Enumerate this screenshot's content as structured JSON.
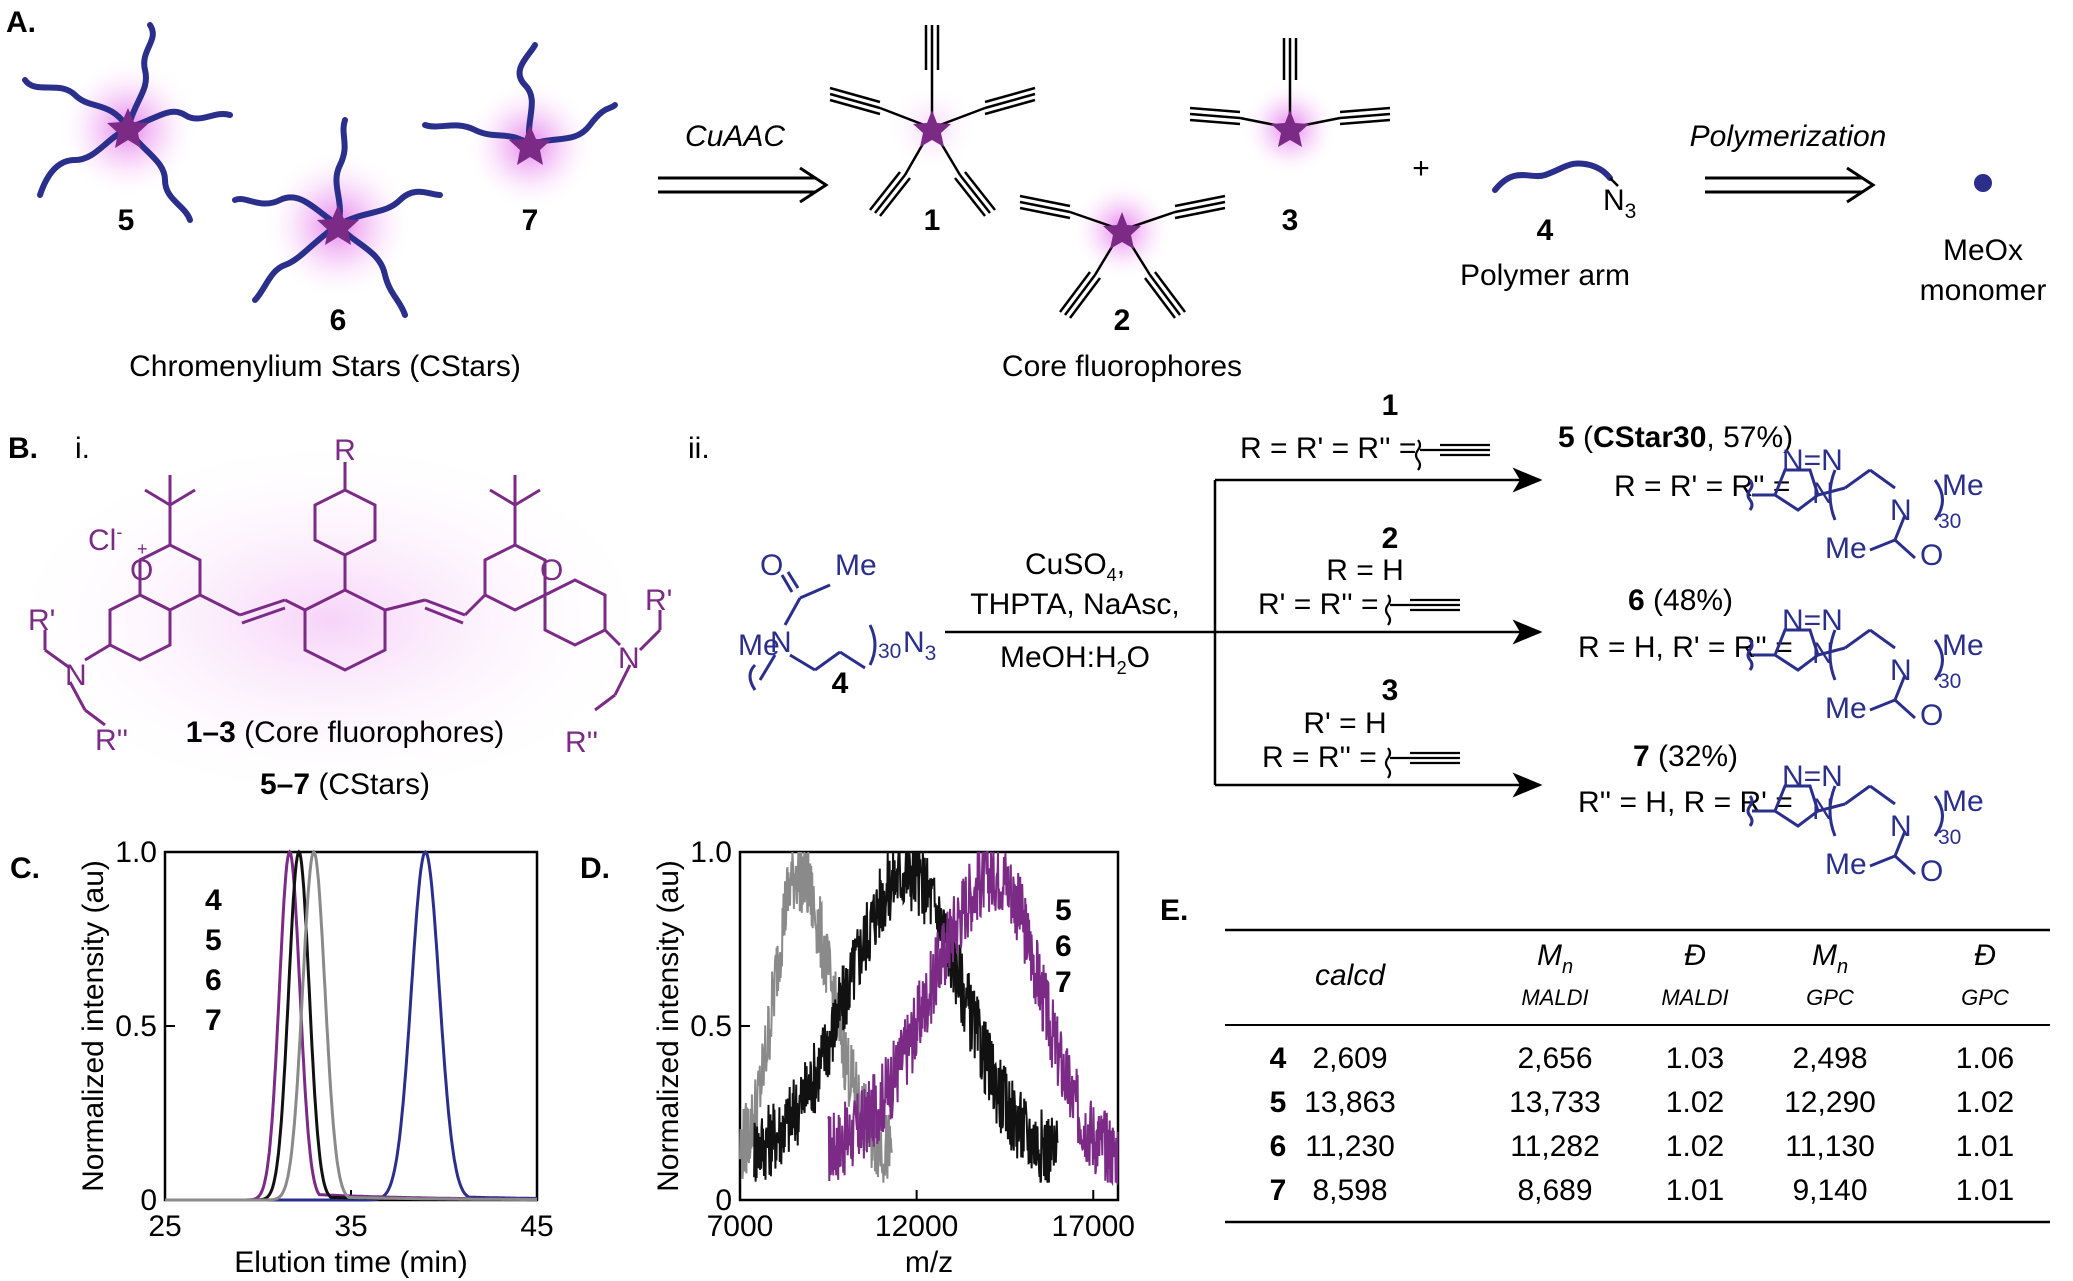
{
  "colors": {
    "purple": "#7b2a86",
    "blue": "#2b2f8c",
    "gray": "#8a8a8a",
    "black": "#111111",
    "glow": "#e89af0"
  },
  "panelA": {
    "label": "A.",
    "stars_ids": [
      "5",
      "6",
      "7"
    ],
    "stars_caption": "Chromenylium Stars (CStars)",
    "arrow1_label": "CuAAC",
    "core_ids": [
      "1",
      "2",
      "3"
    ],
    "core_caption": "Core fluorophores",
    "plus": "+",
    "arm_id": "4",
    "arm_n3": "N",
    "arm_n3_sub": "3",
    "arm_caption": "Polymer arm",
    "arrow2_label": "Polymerization",
    "monomer_line1": "MeOx",
    "monomer_line2": "monomer"
  },
  "panelB": {
    "label": "B.",
    "sub_i": "i.",
    "sub_ii": "ii.",
    "structure": {
      "R": "R",
      "Cl": "Cl",
      "Cl_sup": "-",
      "O_plus": "O",
      "plus_sign": "+",
      "O": "O",
      "N": "N",
      "R1": "R'",
      "R2": "R''",
      "caption1_num": "1–3",
      "caption1_text": " (Core fluorophores)",
      "caption2_num": "5–7",
      "caption2_text": " (CStars)"
    },
    "reagent": {
      "id": "4",
      "Me_top": "Me",
      "O": "O",
      "N": "N",
      "Me_left": "Me",
      "sub30": "30",
      "N3": "N",
      "N3_sub": "3"
    },
    "conditions": [
      "CuSO",
      "THPTA, NaAsc,",
      "MeOH:H",
      "O"
    ],
    "cond_sub4": "4",
    "cond_sub2": "2",
    "branches": [
      {
        "core": "1",
        "line1": "R = R' = R'' =",
        "line2": ""
      },
      {
        "core": "2",
        "line1": "R = H",
        "line2": "R' = R'' ="
      },
      {
        "core": "3",
        "line1": "R' = H",
        "line2": "R = R'' ="
      }
    ],
    "products": [
      {
        "num": "5",
        "open": " (",
        "bold": "CStar30",
        "rest": ", 57%)",
        "subst": "R = R' = R'' ="
      },
      {
        "num": "6",
        "rest": " (48%)",
        "subst": "R = H, R' = R'' ="
      },
      {
        "num": "7",
        "rest": " (32%)",
        "subst": "R'' = H, R = R' ="
      }
    ],
    "triazole": {
      "N": "N",
      "Me": "Me",
      "sub30": "30"
    }
  },
  "panelC": {
    "label": "C.",
    "chart_data": {
      "type": "line",
      "xlabel": "Elution time (min)",
      "ylabel": "Normalized intensity (au)",
      "xlim": [
        25,
        45
      ],
      "ylim": [
        0,
        1.0
      ],
      "xticks": [
        "25",
        "35",
        "45"
      ],
      "xtick_values": [
        25,
        35,
        45
      ],
      "yticks": [
        "0",
        "0.5",
        "1.0"
      ],
      "ytick_values": [
        0,
        0.5,
        1.0
      ],
      "legend": [
        "4",
        "5",
        "6",
        "7"
      ],
      "series": [
        {
          "name": "4",
          "color": "#2b2f8c",
          "peak": 39.0,
          "sigma": 0.75,
          "tail": 0.012
        },
        {
          "name": "5",
          "color": "#7b2a86",
          "peak": 31.7,
          "sigma": 0.55,
          "tail": 0.02
        },
        {
          "name": "6",
          "color": "#111111",
          "peak": 32.2,
          "sigma": 0.55,
          "tail": 0.01
        },
        {
          "name": "7",
          "color": "#8a8a8a",
          "peak": 33.0,
          "sigma": 0.6,
          "tail": 0.01
        }
      ]
    }
  },
  "panelD": {
    "label": "D.",
    "chart_data": {
      "type": "line",
      "xlabel": "m/z",
      "ylabel": "Normalized intensity (au)",
      "xlim": [
        7000,
        17700
      ],
      "ylim": [
        0,
        1.0
      ],
      "xticks": [
        "7000",
        "12000",
        "17000"
      ],
      "xtick_values": [
        7000,
        12000,
        17000
      ],
      "yticks": [
        "0",
        "0.5",
        "1.0"
      ],
      "ytick_values": [
        0,
        0.5,
        1.0
      ],
      "legend": [
        "5",
        "6",
        "7"
      ],
      "series": [
        {
          "name": "5",
          "color": "#7b2a86",
          "peak": 14250,
          "start": 9500,
          "end": 17700
        },
        {
          "name": "6",
          "color": "#111111",
          "peak": 11750,
          "start": 7400,
          "end": 16000
        },
        {
          "name": "7",
          "color": "#8a8a8a",
          "peak": 8600,
          "start": 7000,
          "end": 11300
        }
      ]
    }
  },
  "panelE": {
    "label": "E.",
    "headers": [
      {
        "main": "calcd",
        "sub": ""
      },
      {
        "main": "M",
        "main_sub": "n",
        "sub": "MALDI"
      },
      {
        "main": "Đ",
        "sub": "MALDI"
      },
      {
        "main": "M",
        "main_sub": "n",
        "sub": "GPC"
      },
      {
        "main": "Đ",
        "sub": "GPC"
      }
    ],
    "rows": [
      {
        "id": "4",
        "color": "#2b2f8c",
        "values": [
          "2,609",
          "2,656",
          "1.03",
          "2,498",
          "1.06"
        ]
      },
      {
        "id": "5",
        "color": "#7b2a86",
        "values": [
          "13,863",
          "13,733",
          "1.02",
          "12,290",
          "1.02"
        ]
      },
      {
        "id": "6",
        "color": "#111111",
        "values": [
          "11,230",
          "11,282",
          "1.02",
          "11,130",
          "1.01"
        ]
      },
      {
        "id": "7",
        "color": "#8a8a8a",
        "values": [
          "8,598",
          "8,689",
          "1.01",
          "9,140",
          "1.01"
        ]
      }
    ]
  }
}
